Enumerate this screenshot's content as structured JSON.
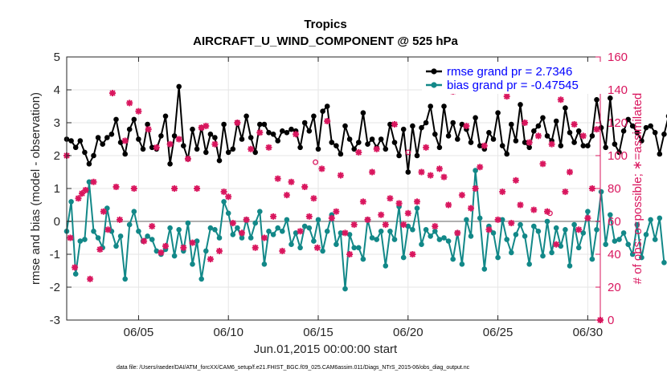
{
  "chart_data": {
    "type": "line",
    "title": "Tropics",
    "subtitle": "AIRCRAFT_U_WIND_COMPONENT @ 525 hPa",
    "xlabel": "Jun.01,2015 00:00:00 start",
    "ylabel": "rmse and bias (model - observation)",
    "ylabel_right": "# of obs: o=possible; ∗=assimilated",
    "footer": "data file: /Users/raeder/DAI/ATM_forcXX/CAM6_setup/f.e21.FHIST_BGC.f09_025.CAM6assim.011/Diags_NTrS_2015-06/obs_diag_output.nc",
    "xlim": [
      1,
      30.7
    ],
    "ylim": [
      -3,
      5
    ],
    "ylim_right": [
      0,
      160
    ],
    "x_ticks": [
      5,
      10,
      15,
      20,
      25,
      30
    ],
    "x_tick_labels": [
      "06/05",
      "06/10",
      "06/15",
      "06/20",
      "06/25",
      "06/30"
    ],
    "y_ticks": [
      -3,
      -2,
      -1,
      0,
      1,
      2,
      3,
      4,
      5
    ],
    "y_tick_labels": [
      "-3",
      "-2",
      "-1",
      "0",
      "1",
      "2",
      "3",
      "4",
      "5"
    ],
    "y_ticks_right": [
      0,
      20,
      40,
      60,
      80,
      100,
      120,
      140,
      160
    ],
    "y_tick_labels_right": [
      "0",
      "20",
      "40",
      "60",
      "80",
      "100",
      "120",
      "140",
      "160"
    ],
    "x_start": 1.0,
    "x_step": 0.25,
    "series": [
      {
        "name": "rmse",
        "legend": "rmse grand pr = 2.7346",
        "color": "#000000",
        "values": [
          2.5,
          2.45,
          2.25,
          2.45,
          2.1,
          1.75,
          2.0,
          2.55,
          2.35,
          2.55,
          2.65,
          3.1,
          2.4,
          2.05,
          2.8,
          3.1,
          2.5,
          2.2,
          2.95,
          2.25,
          2.2,
          2.6,
          3.2,
          1.75,
          2.6,
          4.1,
          2.3,
          1.9,
          2.8,
          2.2,
          2.85,
          2.1,
          2.65,
          2.55,
          1.85,
          2.95,
          2.1,
          2.2,
          3.0,
          2.5,
          3.2,
          2.55,
          2.1,
          2.95,
          2.95,
          2.7,
          2.65,
          2.45,
          2.75,
          2.7,
          2.8,
          2.75,
          2.25,
          3.0,
          2.75,
          3.2,
          2.2,
          3.35,
          3.5,
          2.4,
          2.3,
          2.05,
          2.9,
          2.5,
          2.2,
          2.4,
          3.3,
          2.35,
          2.5,
          2.25,
          2.5,
          2.2,
          2.95,
          2.4,
          2.0,
          2.8,
          1.5,
          2.9,
          2.0,
          2.85,
          3.0,
          3.5,
          2.65,
          2.25,
          3.5,
          2.6,
          3.0,
          2.5,
          2.95,
          2.8,
          2.4,
          3.15,
          2.3,
          2.2,
          2.7,
          2.5,
          3.3,
          2.3,
          2.05,
          2.95,
          2.45,
          3.55,
          2.4,
          2.25,
          2.75,
          2.9,
          3.15,
          2.6,
          2.45,
          3.05,
          2.3,
          3.45,
          2.7,
          2.4,
          2.75,
          2.3,
          2.3,
          2.6,
          3.7,
          2.85,
          2.25,
          3.75,
          2.35,
          2.1,
          2.75,
          3.1,
          2.9,
          2.7,
          2.45,
          2.85,
          2.9,
          2.7,
          2.05,
          2.65,
          3.2
        ]
      },
      {
        "name": "bias",
        "legend": "bias grand pr = -0.47545",
        "color": "#128888",
        "values": [
          -0.3,
          0.6,
          -1.6,
          -0.6,
          -0.55,
          1.2,
          -0.3,
          -0.5,
          -0.8,
          0.4,
          -0.3,
          -0.75,
          -0.45,
          -1.75,
          -0.1,
          0.3,
          -0.3,
          -0.6,
          -0.45,
          -0.55,
          -0.9,
          -1.0,
          -0.85,
          -0.2,
          -1.05,
          -0.25,
          -0.9,
          -0.05,
          -1.3,
          -0.6,
          -1.75,
          -0.9,
          -0.2,
          -0.25,
          -0.5,
          0.6,
          0.25,
          -0.4,
          -0.2,
          -0.5,
          0.05,
          -0.5,
          -0.05,
          0.3,
          -1.3,
          -0.3,
          -0.4,
          -0.2,
          -0.3,
          0.05,
          -0.7,
          -0.35,
          -0.8,
          -0.15,
          -0.2,
          -0.6,
          0.05,
          -0.9,
          -0.3,
          0.2,
          -0.7,
          -0.35,
          -2.05,
          -0.4,
          -0.8,
          -0.8,
          -1.15,
          0.05,
          -0.5,
          -0.55,
          -0.3,
          -1.35,
          -0.3,
          -0.55,
          0.45,
          -1.1,
          -0.15,
          -0.25,
          0.4,
          -0.7,
          -0.25,
          -0.45,
          -0.3,
          -0.55,
          -0.5,
          -0.6,
          -1.15,
          -0.35,
          -1.3,
          0.05,
          -0.45,
          1.55,
          0.1,
          -1.45,
          -0.15,
          -0.35,
          -1.1,
          0.05,
          -0.55,
          -0.95,
          -0.4,
          -0.1,
          -0.45,
          -1.3,
          -0.15,
          -0.3,
          -1.05,
          0.0,
          -0.95,
          -0.2,
          -0.75,
          -0.25,
          -1.35,
          -0.1,
          -0.8,
          -0.35,
          0.3,
          -1.15,
          -0.25,
          0.9,
          -0.7,
          0.2,
          -0.6,
          -0.55,
          -0.35,
          -0.7,
          -1.0,
          -0.1,
          -1.1,
          -0.4,
          0.05,
          -0.55,
          0.1,
          -1.25
        ]
      }
    ],
    "obs_possible": {
      "name": "possible obs",
      "color": "#d9165e",
      "points": [
        {
          "x": 14.85,
          "y": 96
        },
        {
          "x": 20.0,
          "y": 102
        },
        {
          "x": 27.9,
          "y": 65
        }
      ]
    },
    "obs_assimilated": {
      "name": "assimilated obs",
      "color": "#d9165e",
      "points": [
        {
          "x": 1.0,
          "y": 100
        },
        {
          "x": 1.2,
          "y": 50
        },
        {
          "x": 1.45,
          "y": 32
        },
        {
          "x": 1.65,
          "y": 74
        },
        {
          "x": 1.85,
          "y": 77
        },
        {
          "x": 2.05,
          "y": 79
        },
        {
          "x": 2.3,
          "y": 25
        },
        {
          "x": 2.5,
          "y": 84
        },
        {
          "x": 2.85,
          "y": 43
        },
        {
          "x": 3.05,
          "y": 66
        },
        {
          "x": 3.3,
          "y": 55
        },
        {
          "x": 3.55,
          "y": 138
        },
        {
          "x": 3.75,
          "y": 81
        },
        {
          "x": 3.95,
          "y": 61
        },
        {
          "x": 4.25,
          "y": 109
        },
        {
          "x": 4.5,
          "y": 132
        },
        {
          "x": 4.75,
          "y": 80
        },
        {
          "x": 5.0,
          "y": 127
        },
        {
          "x": 5.3,
          "y": 48
        },
        {
          "x": 5.55,
          "y": 116
        },
        {
          "x": 5.75,
          "y": 57
        },
        {
          "x": 6.0,
          "y": 105
        },
        {
          "x": 6.25,
          "y": 41
        },
        {
          "x": 6.5,
          "y": 45
        },
        {
          "x": 6.75,
          "y": 107
        },
        {
          "x": 7.0,
          "y": 80
        },
        {
          "x": 7.25,
          "y": 110
        },
        {
          "x": 7.5,
          "y": 44
        },
        {
          "x": 7.75,
          "y": 98
        },
        {
          "x": 8.0,
          "y": 47
        },
        {
          "x": 8.25,
          "y": 80
        },
        {
          "x": 8.5,
          "y": 117
        },
        {
          "x": 8.75,
          "y": 118
        },
        {
          "x": 9.0,
          "y": 37
        },
        {
          "x": 9.25,
          "y": 107
        },
        {
          "x": 9.5,
          "y": 42
        },
        {
          "x": 9.75,
          "y": 78
        },
        {
          "x": 10.0,
          "y": 75
        },
        {
          "x": 10.25,
          "y": 59
        },
        {
          "x": 10.5,
          "y": 120
        },
        {
          "x": 10.75,
          "y": 53
        },
        {
          "x": 11.0,
          "y": 61
        },
        {
          "x": 11.25,
          "y": 104
        },
        {
          "x": 11.5,
          "y": 44
        },
        {
          "x": 11.75,
          "y": 114
        },
        {
          "x": 12.0,
          "y": 50
        },
        {
          "x": 12.25,
          "y": 105
        },
        {
          "x": 12.5,
          "y": 63
        },
        {
          "x": 12.75,
          "y": 86
        },
        {
          "x": 13.0,
          "y": 42
        },
        {
          "x": 13.25,
          "y": 76
        },
        {
          "x": 13.5,
          "y": 84
        },
        {
          "x": 13.75,
          "y": 113
        },
        {
          "x": 14.0,
          "y": 54
        },
        {
          "x": 14.25,
          "y": 81
        },
        {
          "x": 14.5,
          "y": 63
        },
        {
          "x": 14.75,
          "y": 74
        },
        {
          "x": 14.95,
          "y": 44
        },
        {
          "x": 15.2,
          "y": 92
        },
        {
          "x": 15.5,
          "y": 121
        },
        {
          "x": 15.75,
          "y": 62
        },
        {
          "x": 16.0,
          "y": 66
        },
        {
          "x": 16.25,
          "y": 88
        },
        {
          "x": 16.5,
          "y": 53
        },
        {
          "x": 16.75,
          "y": 40
        },
        {
          "x": 17.0,
          "y": 58
        },
        {
          "x": 17.25,
          "y": 102
        },
        {
          "x": 17.5,
          "y": 72
        },
        {
          "x": 17.75,
          "y": 61
        },
        {
          "x": 18.0,
          "y": 90
        },
        {
          "x": 18.25,
          "y": 104
        },
        {
          "x": 18.5,
          "y": 64
        },
        {
          "x": 18.75,
          "y": 58
        },
        {
          "x": 19.0,
          "y": 74
        },
        {
          "x": 19.25,
          "y": 119
        },
        {
          "x": 19.5,
          "y": 71
        },
        {
          "x": 19.75,
          "y": 58
        },
        {
          "x": 20.0,
          "y": 65
        },
        {
          "x": 20.25,
          "y": 40
        },
        {
          "x": 20.5,
          "y": 72
        },
        {
          "x": 20.75,
          "y": 90
        },
        {
          "x": 21.0,
          "y": 105
        },
        {
          "x": 21.25,
          "y": 88
        },
        {
          "x": 21.5,
          "y": 57
        },
        {
          "x": 21.75,
          "y": 92
        },
        {
          "x": 22.0,
          "y": 87
        },
        {
          "x": 22.25,
          "y": 70
        },
        {
          "x": 22.5,
          "y": 139
        },
        {
          "x": 22.75,
          "y": 53
        },
        {
          "x": 23.0,
          "y": 76
        },
        {
          "x": 23.25,
          "y": 118
        },
        {
          "x": 23.5,
          "y": 68
        },
        {
          "x": 23.75,
          "y": 80
        },
        {
          "x": 24.0,
          "y": 93
        },
        {
          "x": 24.25,
          "y": 106
        },
        {
          "x": 24.5,
          "y": 55
        },
        {
          "x": 24.75,
          "y": 140
        },
        {
          "x": 25.0,
          "y": 61
        },
        {
          "x": 25.25,
          "y": 78
        },
        {
          "x": 25.5,
          "y": 136
        },
        {
          "x": 25.75,
          "y": 59
        },
        {
          "x": 26.0,
          "y": 85
        },
        {
          "x": 26.25,
          "y": 70
        },
        {
          "x": 26.5,
          "y": 120
        },
        {
          "x": 26.75,
          "y": 108
        },
        {
          "x": 27.0,
          "y": 67
        },
        {
          "x": 27.25,
          "y": 112
        },
        {
          "x": 27.5,
          "y": 95
        },
        {
          "x": 27.75,
          "y": 66
        },
        {
          "x": 28.0,
          "y": 107
        },
        {
          "x": 28.25,
          "y": 46
        },
        {
          "x": 28.5,
          "y": 134
        },
        {
          "x": 28.75,
          "y": 78
        },
        {
          "x": 29.0,
          "y": 90
        },
        {
          "x": 29.25,
          "y": 119
        },
        {
          "x": 29.5,
          "y": 55
        },
        {
          "x": 29.75,
          "y": 112
        },
        {
          "x": 30.0,
          "y": 62
        },
        {
          "x": 30.25,
          "y": 80
        },
        {
          "x": 30.5,
          "y": 116
        },
        {
          "x": 30.7,
          "y": 0
        }
      ]
    }
  }
}
